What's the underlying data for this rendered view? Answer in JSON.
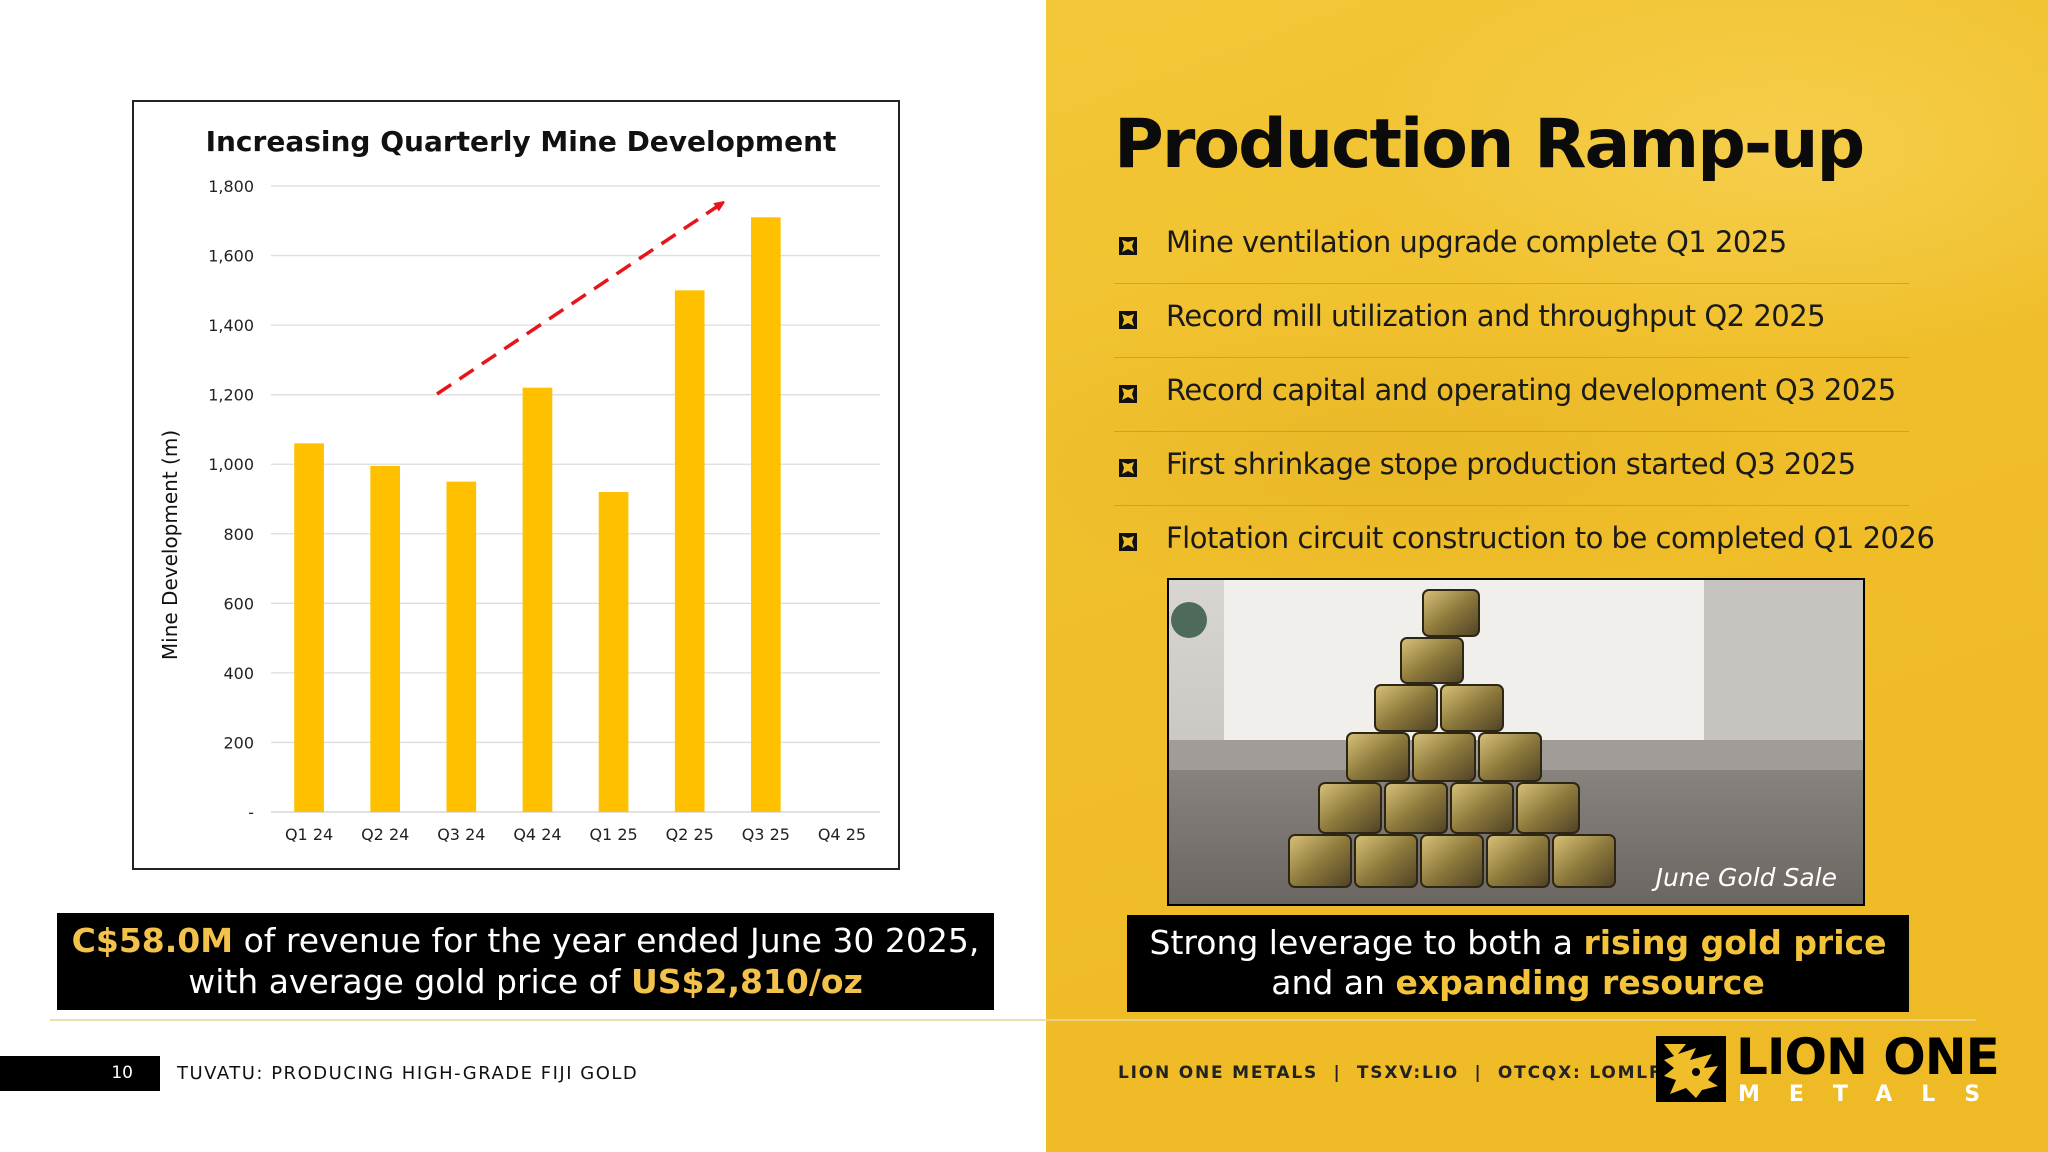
{
  "page_number": "10",
  "footer_title": "TUVATU: PRODUCING HIGH-GRADE FIJI GOLD",
  "footer_ticker": "LION ONE METALS  |  TSXV:LIO  |  OTCQX: LOMLF",
  "logo": {
    "name": "LION ONE",
    "sub": "METALS"
  },
  "colors": {
    "panel": "#f0be2a",
    "bar": "#ffc000",
    "trend_arrow": "#e8141c",
    "highlight": "#f2c24a"
  },
  "heading": "Production Ramp-up",
  "bullets": [
    "Mine ventilation upgrade complete Q1 2025",
    "Record mill utilization and throughput Q2 2025",
    "Record capital and operating development Q3 2025",
    "First shrinkage stope production started Q3 2025",
    "Flotation circuit construction to be completed Q1 2026"
  ],
  "bullet_icon": "lion-icon",
  "photo": {
    "caption": "June Gold Sale"
  },
  "revenue": {
    "amount": "C$58.0M",
    "text1": " of revenue for the year ended June 30 2025,",
    "text2": "with average gold price of ",
    "price": "US$2,810/oz"
  },
  "leverage": {
    "text1": "Strong leverage to both a ",
    "hl1": "rising gold price",
    "text2": "and an ",
    "hl2": "expanding resource"
  },
  "chart_data": {
    "type": "bar",
    "title": "Increasing Quarterly Mine Development",
    "xlabel": "",
    "ylabel": "Mine Development (m)",
    "categories": [
      "Q1 24",
      "Q2 24",
      "Q3 24",
      "Q4 24",
      "Q1 25",
      "Q2 25",
      "Q3 25",
      "Q4 25"
    ],
    "values": [
      1060,
      995,
      950,
      1220,
      920,
      1500,
      1710,
      null
    ],
    "ylim": [
      0,
      1800
    ],
    "yticks": [
      0,
      200,
      400,
      600,
      800,
      1000,
      1200,
      1400,
      1600,
      1800
    ],
    "ytick_labels": [
      "-",
      "200",
      "400",
      "600",
      "800",
      "1,000",
      "1,200",
      "1,400",
      "1,600",
      "1,800"
    ],
    "grid": true,
    "annotation": "dashed red trend arrow rising from Q3 24 toward Q3 25"
  }
}
